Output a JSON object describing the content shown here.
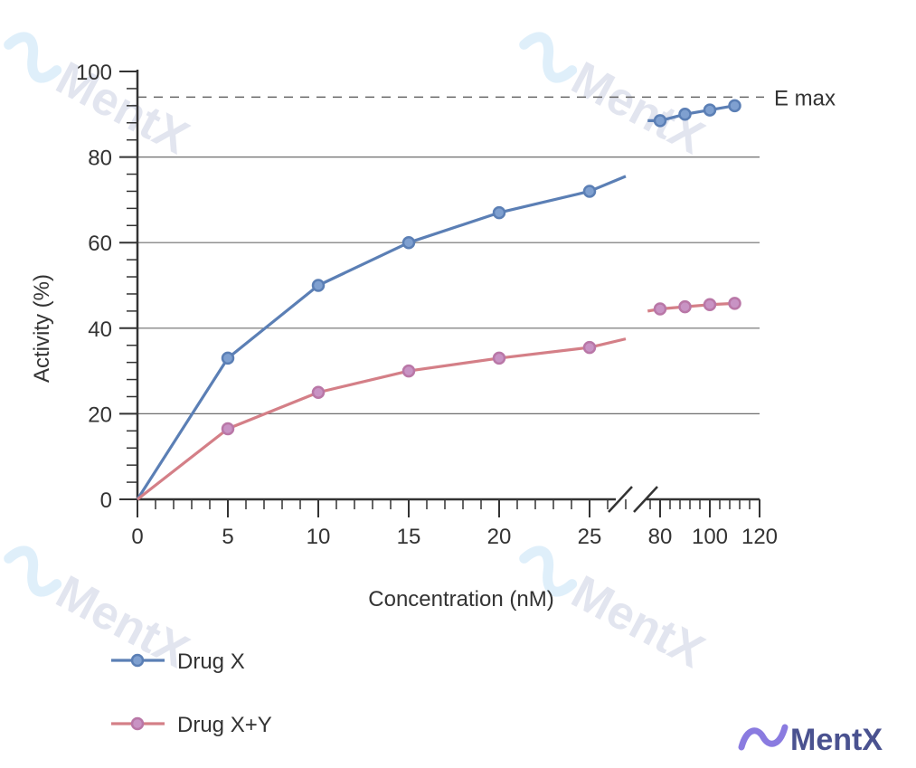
{
  "chart_data": {
    "type": "line",
    "xlabel": "Concentration (nM)",
    "ylabel": "Activity (%)",
    "ylim": [
      0,
      100
    ],
    "yticks": [
      0,
      20,
      40,
      60,
      80,
      100
    ],
    "axis_break": true,
    "x_segments": [
      {
        "range": [
          0,
          27
        ],
        "ticks": [
          0,
          5,
          10,
          15,
          20,
          25
        ]
      },
      {
        "range": [
          75,
          120
        ],
        "ticks": [
          80,
          100,
          120
        ]
      }
    ],
    "grid": "horizontal",
    "reference_line": {
      "label": "E max",
      "y": 94
    },
    "legend_position": "bottom-left",
    "series": [
      {
        "name": "Drug X",
        "color": "#5b7fb5",
        "marker_fill": "#7fa0d0",
        "points": [
          [
            0,
            0
          ],
          [
            5,
            33
          ],
          [
            10,
            50
          ],
          [
            15,
            60
          ],
          [
            20,
            67
          ],
          [
            25,
            72
          ]
        ],
        "line_end": [
          27,
          75.5
        ],
        "points2": [
          [
            80,
            88.5
          ],
          [
            90,
            90
          ],
          [
            100,
            91
          ],
          [
            110,
            92
          ]
        ],
        "line2_start": [
          75,
          88.5
        ]
      },
      {
        "name": "Drug X+Y",
        "color": "#d47f87",
        "marker_fill": "#c893c4",
        "marker_stroke": "#b977a7",
        "points": [
          [
            0,
            0
          ],
          [
            5,
            16.5
          ],
          [
            10,
            25
          ],
          [
            15,
            30
          ],
          [
            20,
            33
          ],
          [
            25,
            35.5
          ]
        ],
        "line_end": [
          27,
          37.5
        ],
        "points2": [
          [
            80,
            44.5
          ],
          [
            90,
            45
          ],
          [
            100,
            45.5
          ],
          [
            110,
            45.8
          ]
        ],
        "line2_start": [
          75,
          44
        ]
      }
    ]
  },
  "watermark": {
    "text": "MentX"
  },
  "logo": {
    "text": "MentX",
    "color": "#4a5290"
  }
}
